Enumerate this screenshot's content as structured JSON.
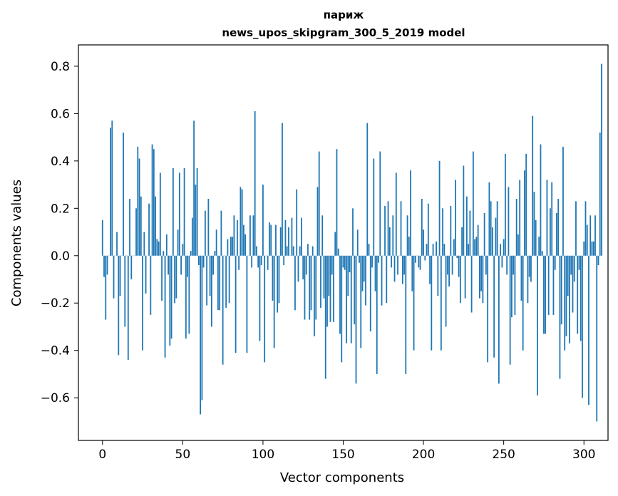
{
  "chart_data": {
    "type": "bar",
    "title": "париж",
    "subtitle": "news_upos_skipgram_300_5_2019 model",
    "xlabel": "Vector components",
    "ylabel": "Components values",
    "xlim": [
      -15,
      315
    ],
    "ylim": [
      -0.78,
      0.89
    ],
    "xticks": [
      0,
      50,
      100,
      150,
      200,
      250,
      300
    ],
    "xtick_labels": [
      "0",
      "50",
      "100",
      "150",
      "200",
      "250",
      "300"
    ],
    "yticks": [
      -0.6,
      -0.4,
      -0.2,
      0.0,
      0.2,
      0.4,
      0.6,
      0.8
    ],
    "ytick_labels": [
      "−0.6",
      "−0.4",
      "−0.2",
      "0.0",
      "0.2",
      "0.4",
      "0.6",
      "0.8"
    ],
    "grid": false,
    "legend": "none",
    "bar_color": "#1f77b4",
    "values": [
      0.15,
      -0.09,
      -0.27,
      -0.08,
      0.0,
      0.54,
      0.57,
      -0.18,
      0.0,
      0.1,
      -0.42,
      -0.17,
      0.0,
      0.52,
      -0.3,
      0.0,
      -0.44,
      0.24,
      -0.1,
      0.0,
      0.0,
      0.2,
      0.46,
      0.41,
      0.25,
      -0.4,
      0.1,
      -0.16,
      0.0,
      0.22,
      -0.25,
      0.47,
      0.45,
      0.25,
      0.07,
      0.06,
      0.35,
      -0.19,
      0.02,
      -0.43,
      0.09,
      -0.08,
      -0.38,
      -0.35,
      0.37,
      -0.2,
      -0.18,
      0.11,
      0.35,
      -0.08,
      0.05,
      0.37,
      -0.35,
      -0.09,
      -0.33,
      0.02,
      0.16,
      0.57,
      0.3,
      0.37,
      -0.04,
      -0.67,
      -0.61,
      -0.05,
      0.19,
      -0.21,
      0.24,
      -0.17,
      -0.3,
      -0.08,
      0.02,
      0.11,
      -0.23,
      -0.23,
      0.19,
      -0.46,
      0.0,
      -0.22,
      0.07,
      -0.2,
      0.08,
      0.08,
      0.17,
      -0.41,
      0.15,
      -0.06,
      0.29,
      0.28,
      0.13,
      0.09,
      -0.41,
      0.0,
      0.17,
      -0.05,
      0.17,
      0.61,
      0.04,
      -0.05,
      -0.36,
      -0.04,
      0.3,
      -0.45,
      0.0,
      -0.06,
      0.14,
      0.13,
      -0.19,
      -0.39,
      0.13,
      -0.24,
      -0.2,
      0.12,
      0.56,
      -0.04,
      0.15,
      0.04,
      0.12,
      0.0,
      0.16,
      0.04,
      -0.23,
      0.28,
      -0.11,
      0.04,
      0.16,
      -0.1,
      -0.27,
      -0.08,
      0.05,
      -0.27,
      -0.23,
      0.04,
      -0.34,
      -0.27,
      0.29,
      0.44,
      -0.22,
      0.17,
      -0.18,
      -0.52,
      -0.3,
      -0.17,
      -0.28,
      -0.08,
      -0.28,
      0.1,
      0.45,
      0.03,
      -0.33,
      -0.45,
      -0.05,
      -0.06,
      -0.37,
      -0.17,
      -0.07,
      -0.37,
      0.2,
      -0.29,
      -0.54,
      0.11,
      -0.03,
      -0.39,
      -0.15,
      -0.11,
      -0.21,
      0.56,
      0.05,
      -0.32,
      -0.05,
      0.41,
      -0.15,
      -0.5,
      -0.03,
      0.44,
      -0.21,
      0.0,
      0.21,
      -0.2,
      0.23,
      0.12,
      -0.05,
      0.17,
      -0.11,
      0.35,
      -0.08,
      0.0,
      0.23,
      -0.12,
      -0.08,
      -0.5,
      0.17,
      0.08,
      0.36,
      -0.15,
      -0.4,
      -0.03,
      0.0,
      -0.05,
      -0.06,
      0.24,
      0.11,
      -0.02,
      0.05,
      0.22,
      -0.12,
      -0.4,
      0.05,
      0.0,
      0.06,
      -0.17,
      0.4,
      -0.4,
      0.2,
      0.05,
      -0.3,
      -0.08,
      -0.13,
      0.21,
      -0.08,
      0.07,
      0.32,
      -0.01,
      -0.09,
      -0.2,
      0.12,
      0.38,
      -0.18,
      0.25,
      0.05,
      0.19,
      -0.24,
      0.44,
      0.07,
      0.08,
      0.13,
      -0.18,
      -0.15,
      -0.2,
      0.18,
      -0.08,
      -0.45,
      0.31,
      0.23,
      0.12,
      -0.43,
      0.16,
      0.23,
      -0.54,
      0.05,
      -0.05,
      0.07,
      0.43,
      -0.08,
      0.29,
      -0.46,
      -0.26,
      -0.08,
      -0.25,
      0.24,
      0.09,
      0.32,
      -0.19,
      -0.4,
      0.36,
      0.43,
      -0.2,
      -0.09,
      -0.11,
      0.59,
      0.27,
      0.15,
      -0.59,
      0.08,
      0.47,
      0.02,
      -0.33,
      -0.33,
      0.32,
      -0.25,
      0.2,
      0.31,
      -0.25,
      -0.06,
      0.18,
      0.24,
      -0.52,
      -0.29,
      0.46,
      -0.4,
      -0.34,
      -0.17,
      -0.37,
      -0.08,
      -0.24,
      -0.11,
      0.23,
      -0.33,
      -0.06,
      -0.36,
      -0.6,
      0.06,
      0.23,
      0.13,
      -0.63,
      0.17,
      0.06,
      0.06,
      0.17,
      -0.7,
      -0.04,
      0.52,
      0.81
    ]
  }
}
